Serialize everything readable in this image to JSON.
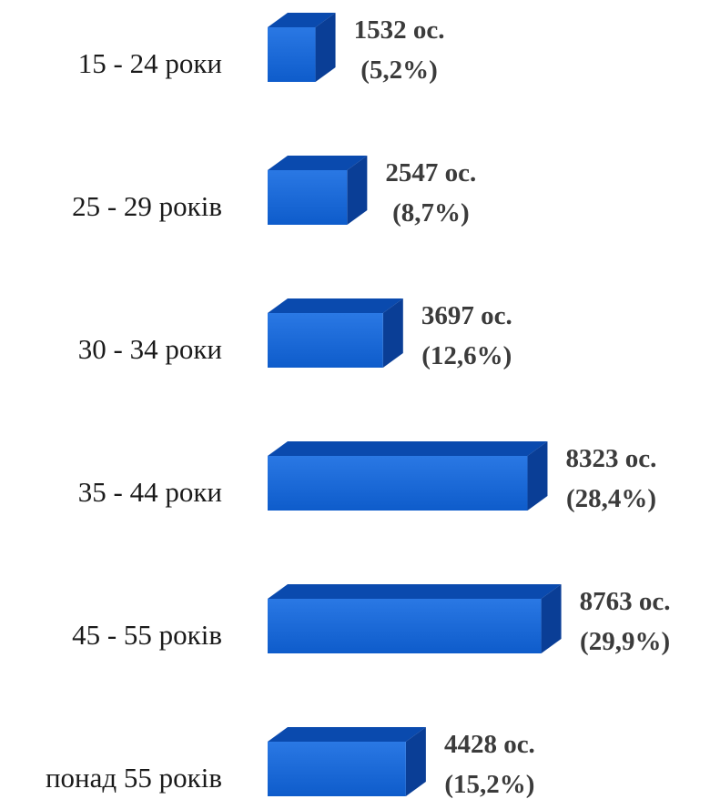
{
  "chart_data": {
    "type": "bar",
    "orientation": "horizontal",
    "title": "",
    "xlabel": "",
    "ylabel": "",
    "grid": false,
    "legend": "none",
    "categories": [
      "15 - 24 роки",
      "25 - 29 років",
      "30 - 34 роки",
      "35 - 44 роки",
      "45 - 55 років",
      "понад 55 років"
    ],
    "values": [
      1532,
      2547,
      3697,
      8323,
      8763,
      4428
    ],
    "percent_labels": [
      "(5,2%)",
      "(8,7%)",
      "(12,6%)",
      "(28,4%)",
      "(29,9%)",
      "(15,2%)"
    ],
    "value_labels": [
      "1532 ос.",
      "2547 ос.",
      "3697 ос.",
      "8323 ос.",
      "8763 ос.",
      "4428 ос."
    ],
    "xlim": [
      0,
      9250
    ],
    "colors": {
      "bar_front": "#0E5CCB",
      "bar_top": "#0A4AAE",
      "bar_side": "#0A3E96"
    }
  }
}
